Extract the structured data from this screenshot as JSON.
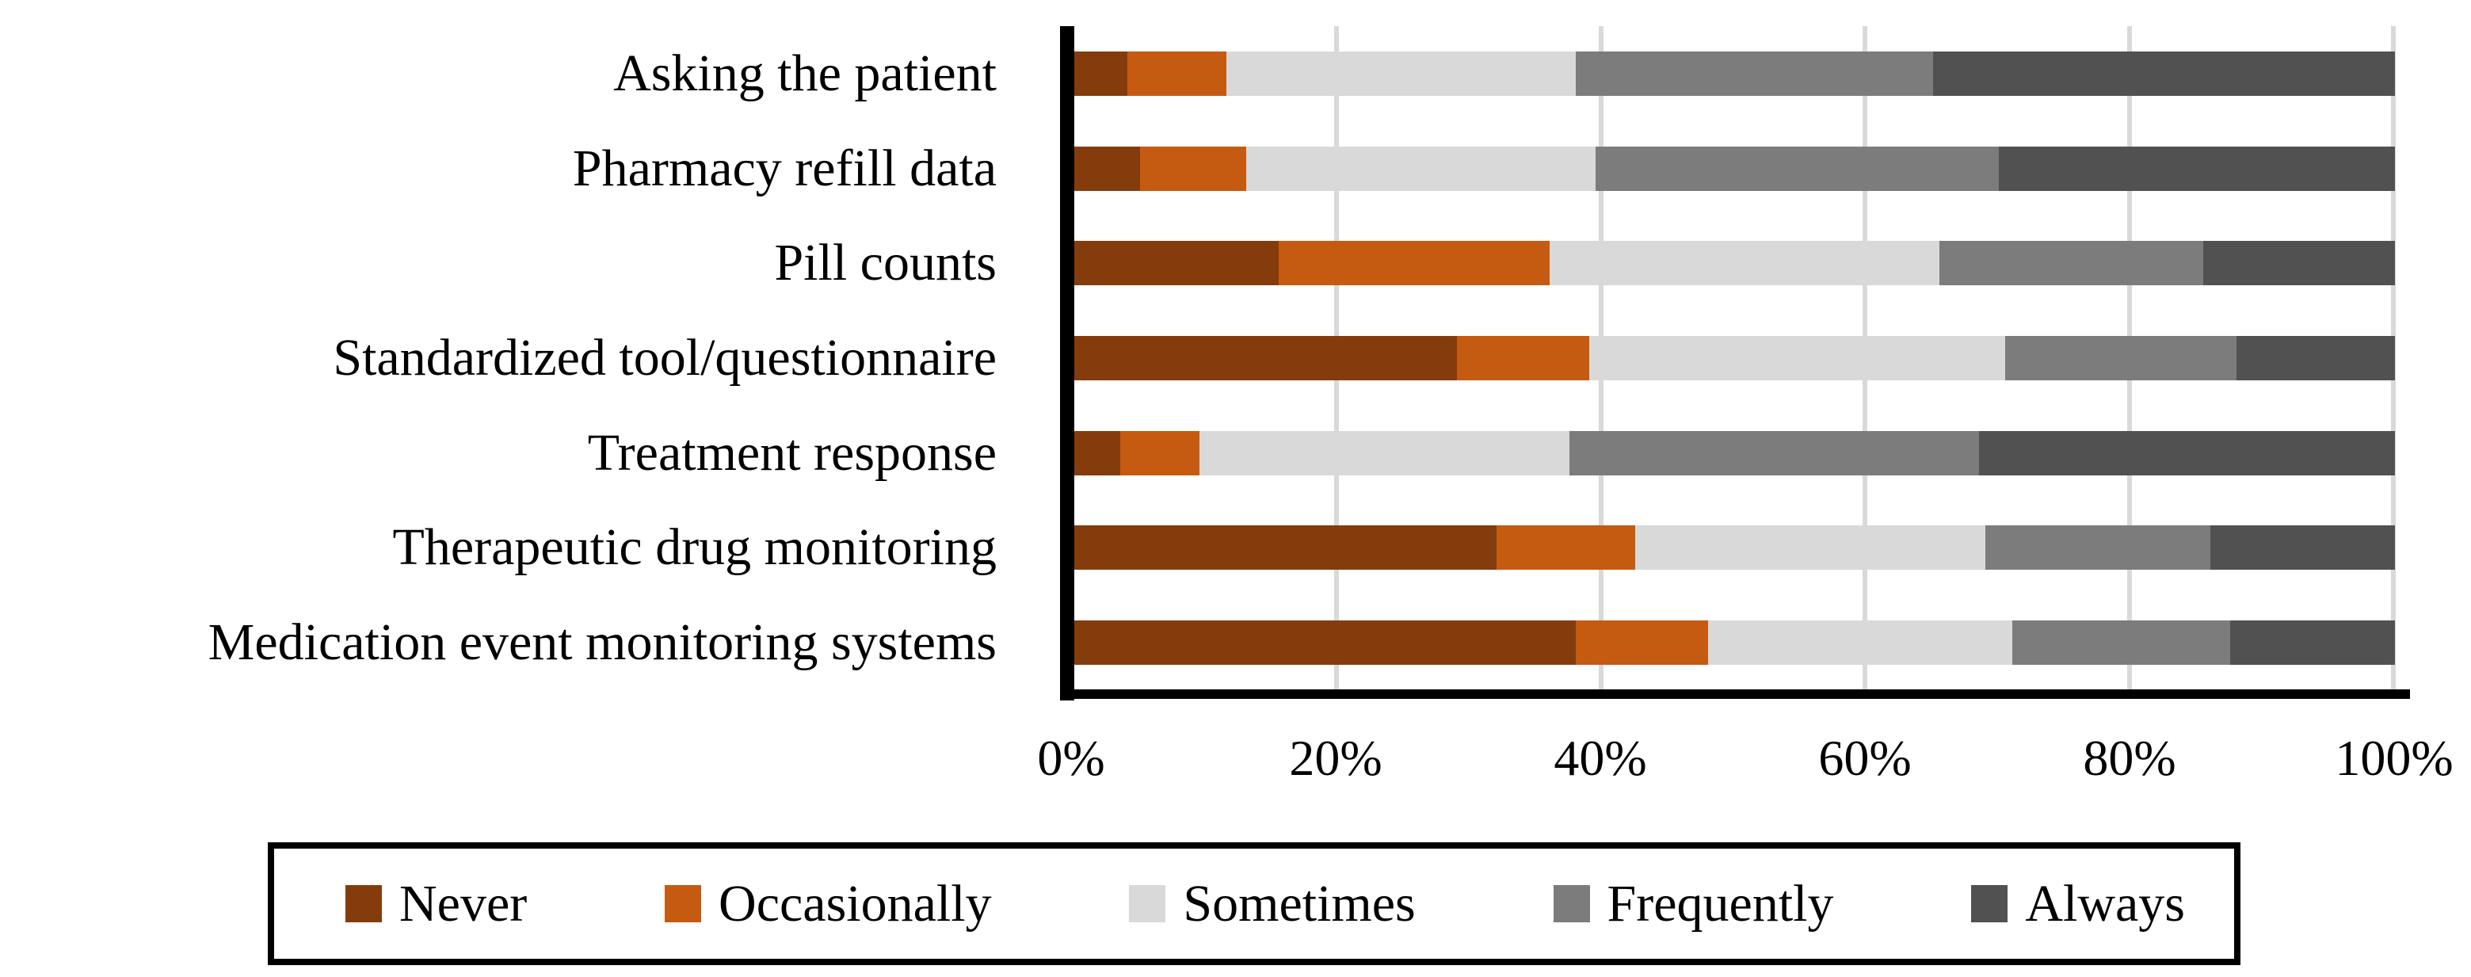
{
  "chart_data": {
    "type": "bar",
    "orientation": "horizontal",
    "stacked": true,
    "unit": "percent",
    "title": "",
    "xlabel": "",
    "ylabel": "",
    "categories": [
      "Asking the patient",
      "Pharmacy refill data",
      "Pill counts",
      "Standardized tool/questionnaire",
      "Treatment response",
      "Therapeutic drug monitoring",
      "Medication event monitoring systems"
    ],
    "series": [
      {
        "name": "Never",
        "color": "#843C0C",
        "values": [
          4,
          5,
          15.5,
          29,
          3.5,
          32,
          38
        ]
      },
      {
        "name": "Occasionally",
        "color": "#C55A11",
        "values": [
          7.5,
          8,
          20.5,
          10,
          6,
          10.5,
          10
        ]
      },
      {
        "name": "Sometimes",
        "color": "#D9D9D9",
        "values": [
          26.5,
          26.5,
          29.5,
          31.5,
          28,
          26.5,
          23
        ]
      },
      {
        "name": "Frequently",
        "color": "#7C7C7C",
        "values": [
          27,
          30.5,
          20,
          17.5,
          31,
          17,
          16.5
        ]
      },
      {
        "name": "Always",
        "color": "#515151",
        "values": [
          35,
          30,
          14.5,
          12,
          31.5,
          14,
          12.5
        ]
      }
    ],
    "x_axis": {
      "min": 0,
      "max": 100,
      "tick_step": 20,
      "tick_labels": [
        "0%",
        "20%",
        "40%",
        "60%",
        "80%",
        "100%"
      ]
    },
    "grid": {
      "vertical_gridlines": true,
      "gridline_color": "#d9d9d9"
    },
    "legend": {
      "position": "bottom",
      "border_color": "#000000",
      "entries": [
        "Never",
        "Occasionally",
        "Sometimes",
        "Frequently",
        "Always"
      ]
    }
  },
  "colors": {
    "background": "#ffffff",
    "axis": "#000000",
    "text": "#000000"
  }
}
